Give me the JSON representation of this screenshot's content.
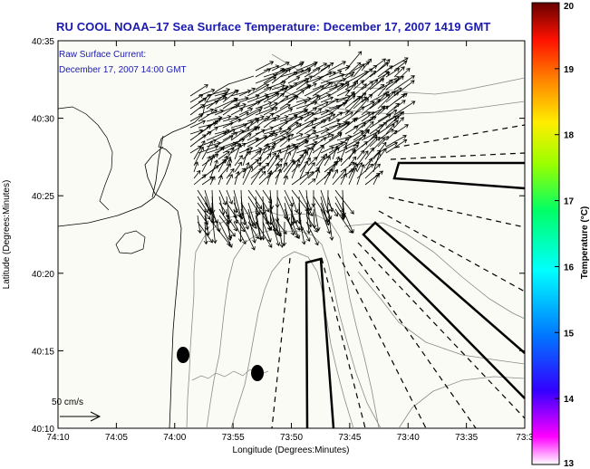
{
  "title": "RU COOL  NOAA–17  Sea Surface Temperature:  December 17, 2007 1419 GMT",
  "annotation": {
    "line1": "Raw Surface Current:",
    "line2": "December 17, 2007 14:00 GMT"
  },
  "axes": {
    "xlabel": "Longitude (Degrees:Minutes)",
    "ylabel": "Latitude (Degrees:Minutes)",
    "x_ticks": [
      "74:10",
      "74:05",
      "74:00",
      "73:55",
      "73:50",
      "73:45",
      "73:40",
      "73:35",
      "73:3"
    ],
    "y_ticks": [
      "40:35",
      "40:30",
      "40:25",
      "40:20",
      "40:15",
      "40:10"
    ]
  },
  "scale": {
    "label": "50 cm/s"
  },
  "colorbar": {
    "label": "Temperature (°C)",
    "ticks": [
      "20",
      "19",
      "18",
      "17",
      "16",
      "15",
      "14",
      "13"
    ],
    "min": 13,
    "max": 20,
    "colors": [
      "#ff00ff",
      "#3300ff",
      "#0077ff",
      "#00ffff",
      "#00ff66",
      "#99ff00",
      "#ffee00",
      "#ff8800",
      "#ff1100",
      "#660000"
    ]
  },
  "colors": {
    "title": "#1a1ab0",
    "land": "#fbfbf5",
    "contour": "#8a8a8a"
  }
}
